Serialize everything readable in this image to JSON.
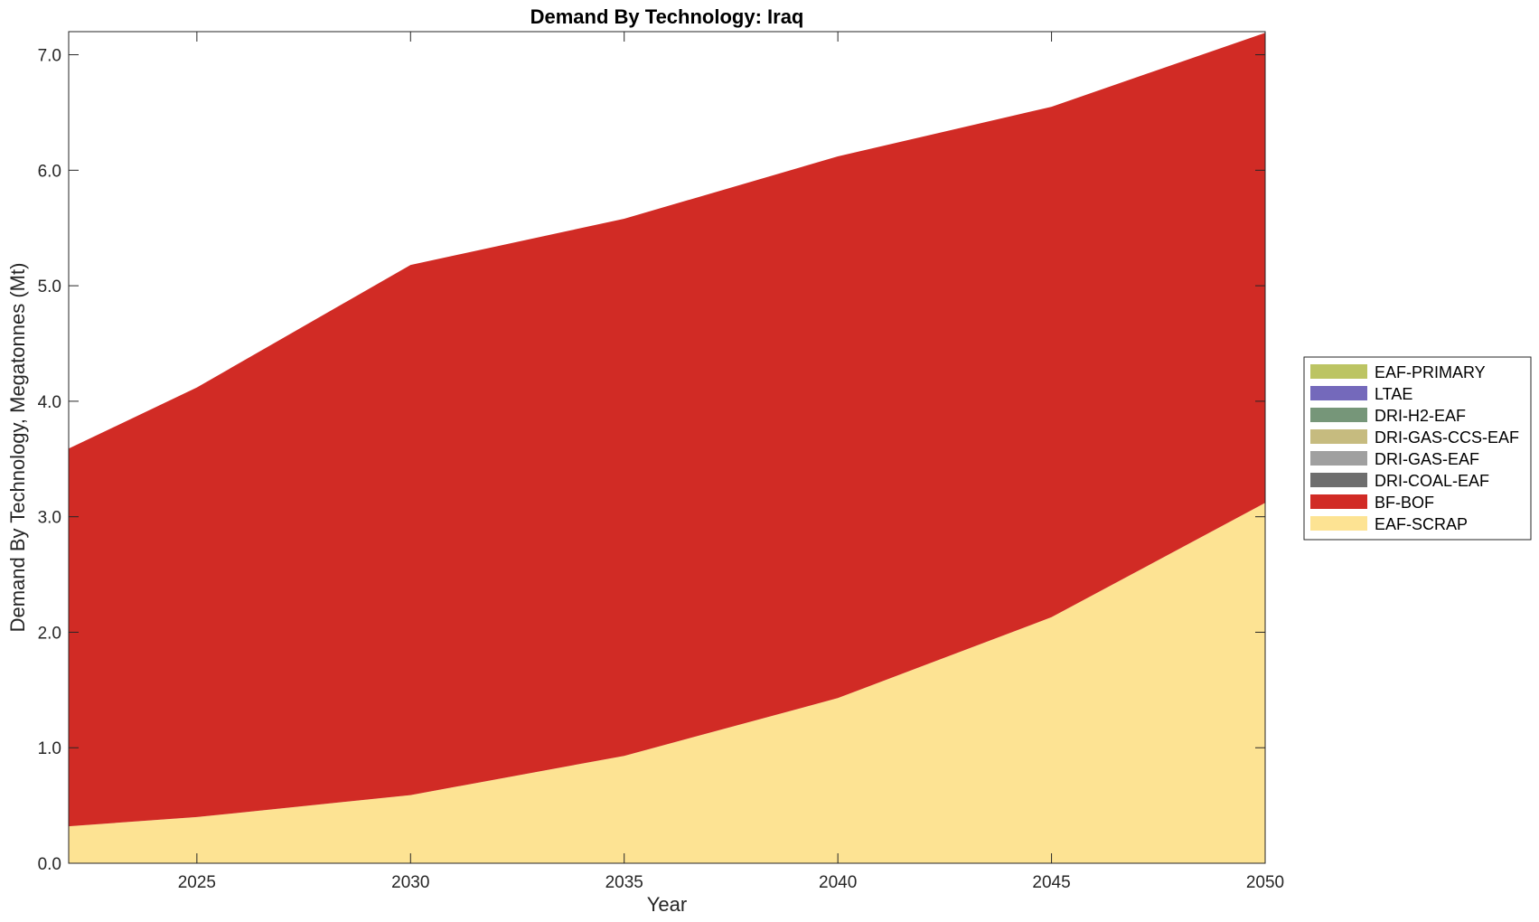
{
  "chart_data": {
    "type": "area",
    "title": "Demand By Technology: Iraq",
    "xlabel": "Year",
    "ylabel": "Demand By Technology, Megatonnes (Mt)",
    "xlim": [
      2022,
      2050
    ],
    "ylim": [
      0,
      7.2
    ],
    "x_ticks": [
      2025,
      2030,
      2035,
      2040,
      2045,
      2050
    ],
    "x_tick_labels": [
      "2025",
      "2030",
      "2035",
      "2040",
      "2045",
      "2050"
    ],
    "y_ticks": [
      0,
      1,
      2,
      3,
      4,
      5,
      6,
      7
    ],
    "y_tick_labels": [
      "0.0",
      "1.0",
      "2.0",
      "3.0",
      "4.0",
      "5.0",
      "6.0",
      "7.0"
    ],
    "grid": false,
    "legend_position": "right",
    "x": [
      2022,
      2025,
      2030,
      2035,
      2040,
      2045,
      2050
    ],
    "series": [
      {
        "name": "EAF-SCRAP",
        "color": "#fde393",
        "values": [
          0.32,
          0.4,
          0.59,
          0.93,
          1.43,
          2.13,
          3.12
        ]
      },
      {
        "name": "BF-BOF",
        "color": "#d12b25",
        "values": [
          3.27,
          3.72,
          4.59,
          4.65,
          4.69,
          4.42,
          4.07
        ]
      },
      {
        "name": "DRI-COAL-EAF",
        "color": "#6e6e6e",
        "values": [
          0,
          0,
          0,
          0,
          0,
          0,
          0
        ]
      },
      {
        "name": "DRI-GAS-EAF",
        "color": "#a0a0a0",
        "values": [
          0,
          0,
          0,
          0,
          0,
          0,
          0
        ]
      },
      {
        "name": "DRI-GAS-CCS-EAF",
        "color": "#c6bb7f",
        "values": [
          0,
          0,
          0,
          0,
          0,
          0,
          0
        ]
      },
      {
        "name": "DRI-H2-EAF",
        "color": "#769679",
        "values": [
          0,
          0,
          0,
          0,
          0,
          0,
          0
        ]
      },
      {
        "name": "LTAE",
        "color": "#7469bb",
        "values": [
          0,
          0,
          0,
          0,
          0,
          0,
          0
        ]
      },
      {
        "name": "EAF-PRIMARY",
        "color": "#bcc463",
        "values": [
          0,
          0,
          0,
          0,
          0,
          0,
          0
        ]
      }
    ],
    "legend_order": [
      "EAF-PRIMARY",
      "LTAE",
      "DRI-H2-EAF",
      "DRI-GAS-CCS-EAF",
      "DRI-GAS-EAF",
      "DRI-COAL-EAF",
      "BF-BOF",
      "EAF-SCRAP"
    ]
  }
}
